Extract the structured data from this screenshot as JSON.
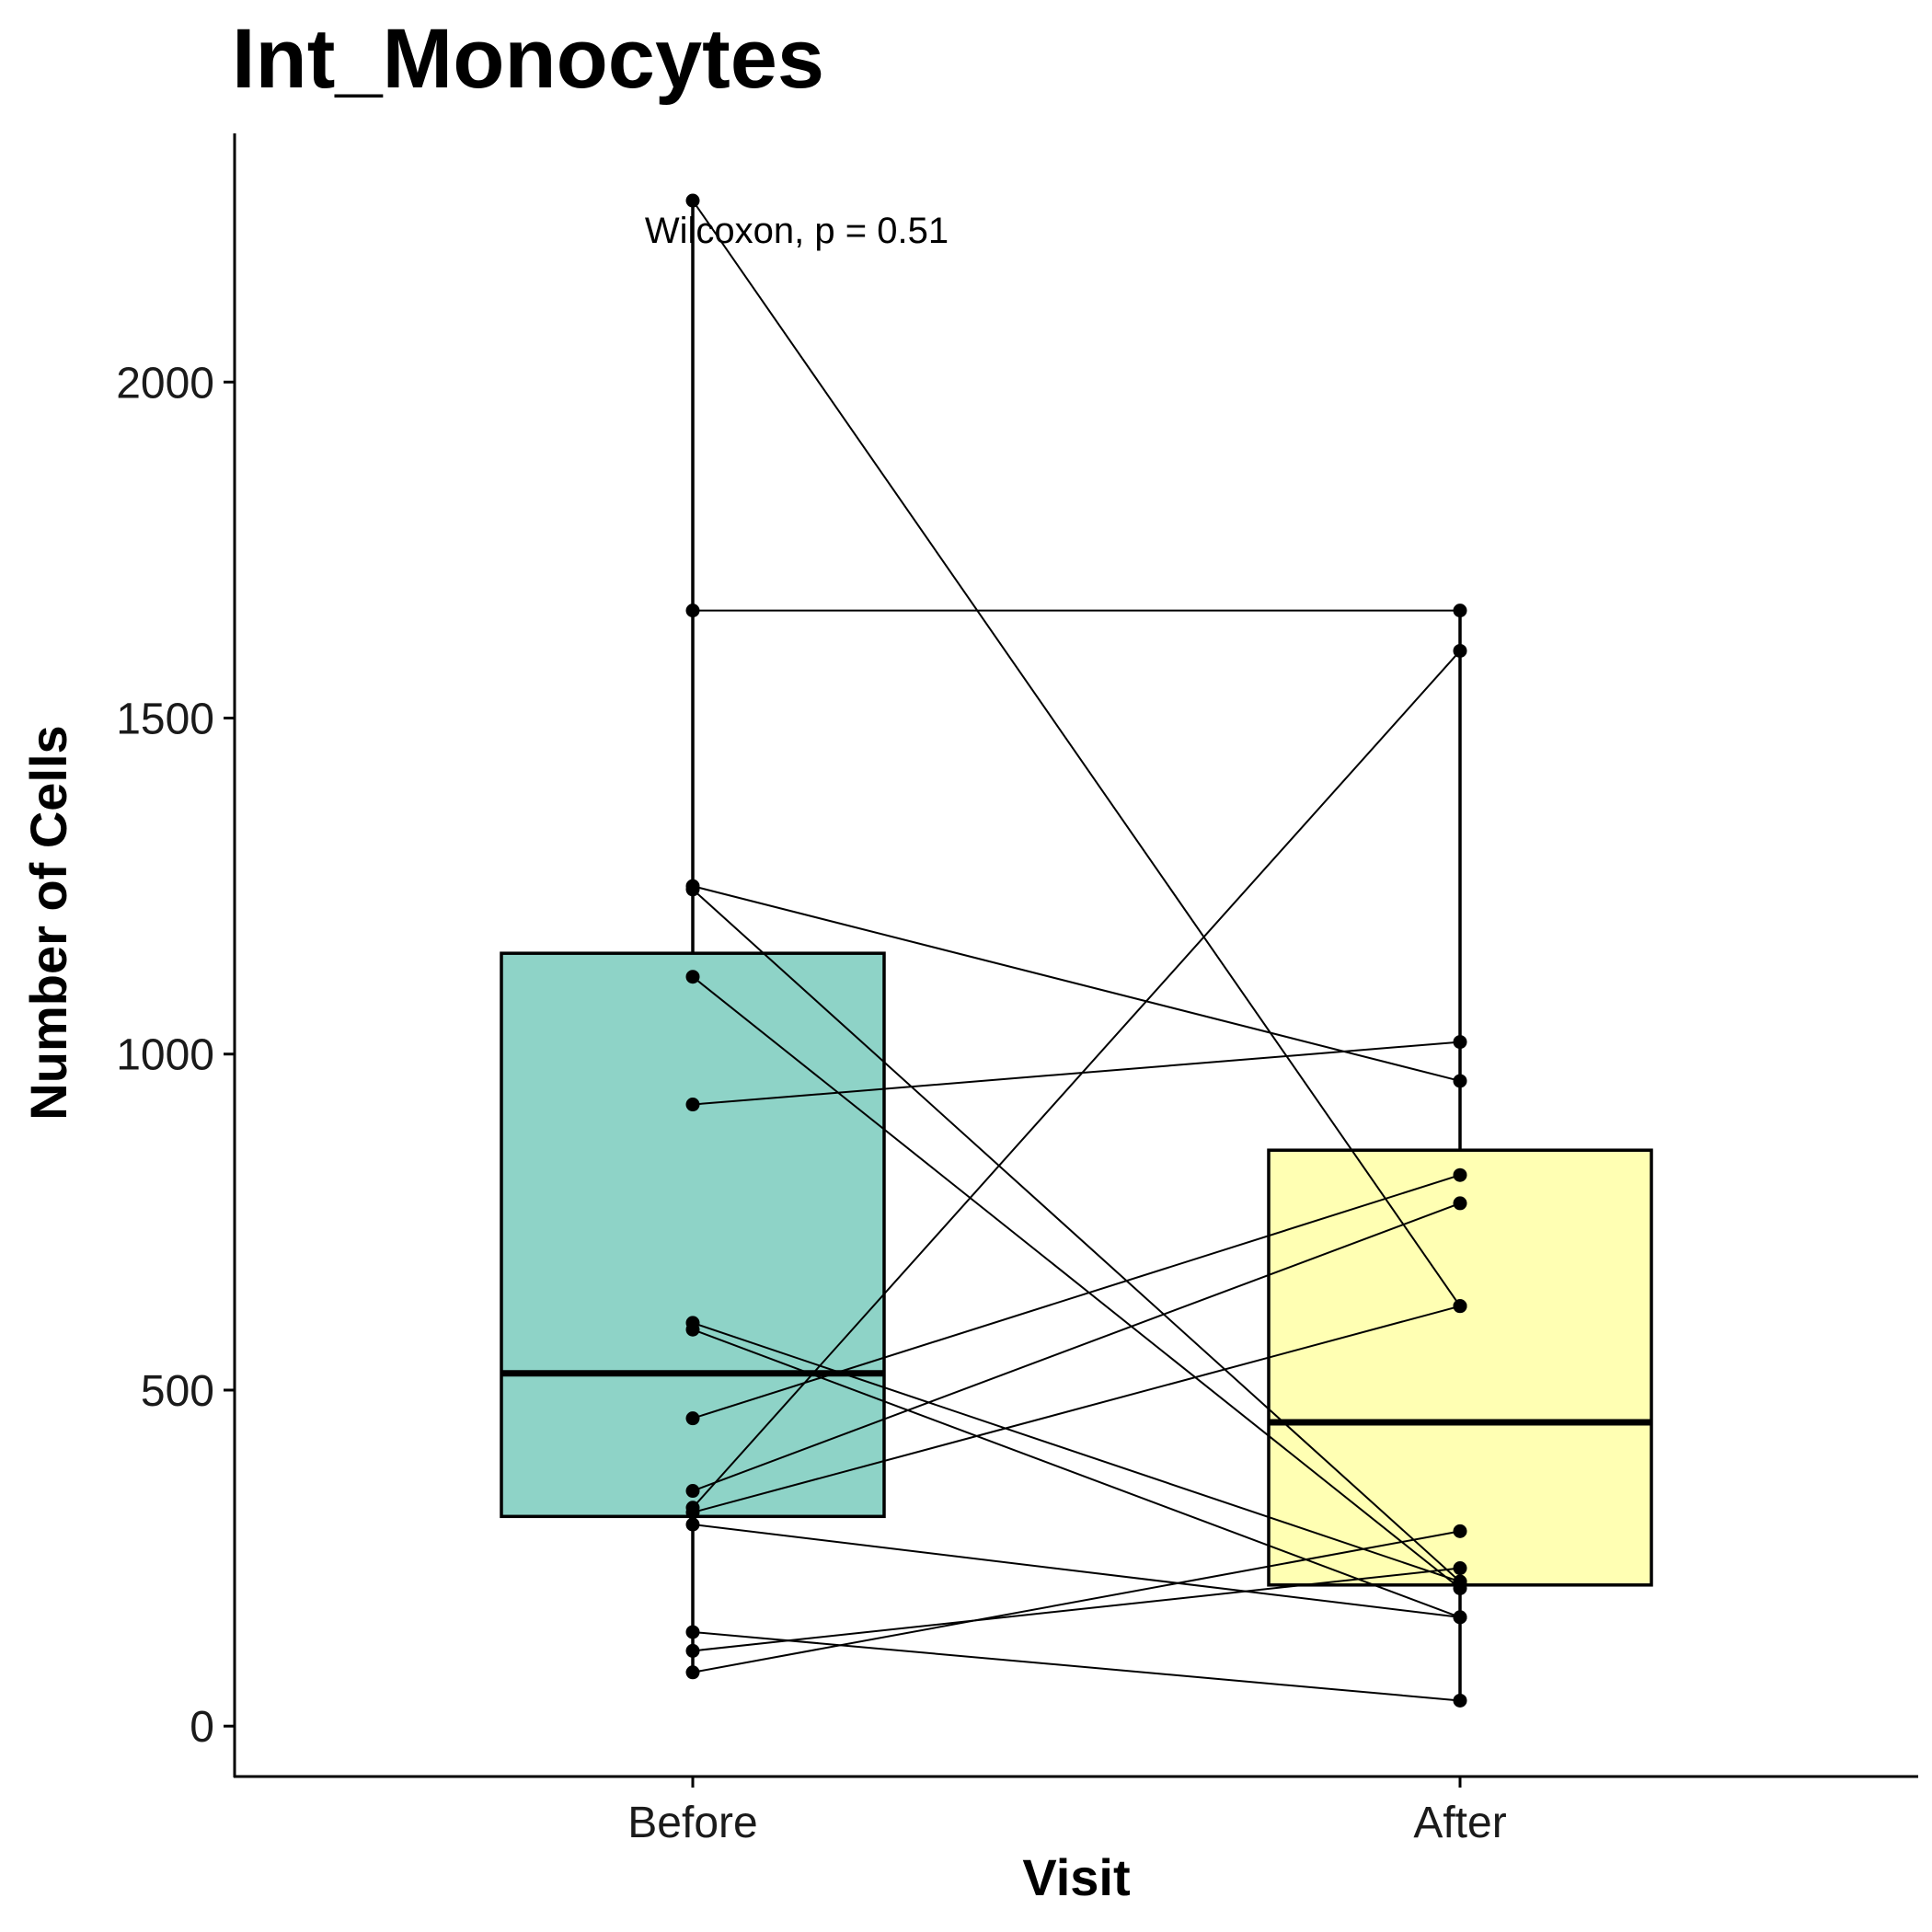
{
  "chart_data": {
    "type": "box",
    "title": "Int_Monocytes",
    "xlabel": "Visit",
    "ylabel": "Number of Cells",
    "categories": [
      "Before",
      "After"
    ],
    "ylim": [
      -75,
      2370
    ],
    "yticks": [
      0,
      500,
      1000,
      1500,
      2000
    ],
    "annotation": "Wilcoxon, p = 0.51",
    "colors": {
      "Before": "#8ED3C7",
      "After": "#FFFFB3"
    },
    "boxes": [
      {
        "name": "Before",
        "q1": 312,
        "median": 525,
        "q3": 1150,
        "whisker_low": 80,
        "whisker_high": 2270
      },
      {
        "name": "After",
        "q1": 210,
        "median": 452,
        "q3": 857,
        "whisker_low": 35,
        "whisker_high": 1660
      }
    ],
    "pairs": [
      [
        2270,
        625
      ],
      [
        1660,
        1660
      ],
      [
        1250,
        960
      ],
      [
        1245,
        215
      ],
      [
        1115,
        205
      ],
      [
        925,
        1018
      ],
      [
        600,
        215
      ],
      [
        590,
        162
      ],
      [
        458,
        820
      ],
      [
        350,
        778
      ],
      [
        325,
        1600
      ],
      [
        318,
        625
      ],
      [
        300,
        162
      ],
      [
        140,
        38
      ],
      [
        112,
        235
      ],
      [
        80,
        290
      ]
    ]
  }
}
